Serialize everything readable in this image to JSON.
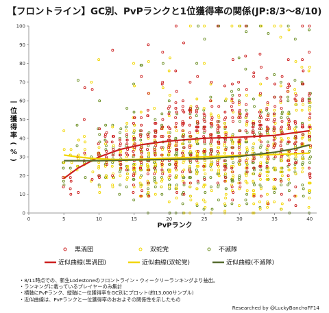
{
  "title": "【フロントライン】GC別、PvPランクと1位獲得率の関係(JP:8/3〜8/10)",
  "notes": [
    "・8/11時点での、新生Lodestoneのフロントライン・ウィークリーランキングより抽出。",
    "・ランキングに載っているプレイヤーのみ集計",
    "・横軸にPvPランク、縦軸に一位獲得率をGC別にプロット(約13,000サンプル)",
    "・近似曲線は、PvPランクと一位獲得率のおおよその関係性を示したもの"
  ],
  "credit": "Researched by @LuckyBanchoFF14",
  "colors": {
    "black_eddy": "#cc1f1f",
    "serpent": "#f2d600",
    "flame": "#6b8e23",
    "background": "#ffffff"
  },
  "chart_data": {
    "type": "scatter",
    "xlabel": "PvPランク",
    "ylabel": "一位獲得率(%)",
    "xlim": [
      0,
      41
    ],
    "ylim": [
      0,
      100
    ],
    "xticks": [
      0,
      5,
      10,
      15,
      20,
      25,
      30,
      35,
      40
    ],
    "yticks": [
      0,
      10,
      20,
      30,
      40,
      50,
      60,
      70,
      80,
      90,
      100
    ],
    "grid": false,
    "legend_position": "bottom",
    "series": [
      {
        "name": "黒渦団",
        "type": "scatter",
        "color": "#cc1f1f",
        "x_range": [
          5,
          40
        ],
        "density": "approx. 13,000 samples total across three GCs, dense from rank 15 to 40"
      },
      {
        "name": "双蛇党",
        "type": "scatter",
        "color": "#f2d600",
        "x_range": [
          5,
          40
        ],
        "density": "approx. 13,000 samples total across three GCs, dense from rank 15 to 40"
      },
      {
        "name": "不滅隊",
        "type": "scatter",
        "color": "#6b8e23",
        "x_range": [
          5,
          40
        ],
        "density": "approx. 13,000 samples total across three GCs, dense from rank 15 to 40"
      },
      {
        "name": "近似曲線(黒渦団)",
        "type": "line",
        "color": "#cc1f1f",
        "x": [
          5,
          7,
          10,
          13,
          16,
          20,
          25,
          30,
          35,
          40
        ],
        "y": [
          18.5,
          24,
          30,
          34,
          36.5,
          38.5,
          40,
          40.5,
          41.5,
          44
        ]
      },
      {
        "name": "近似曲線(双蛇党)",
        "type": "line",
        "color": "#f2d600",
        "x": [
          5,
          7,
          9,
          12,
          15,
          20,
          25,
          30,
          35,
          40
        ],
        "y": [
          31,
          30,
          29.2,
          28.6,
          28.6,
          29.3,
          30,
          30.8,
          31.3,
          32
        ]
      },
      {
        "name": "近似曲線(不滅隊)",
        "type": "line",
        "color": "#556b2f",
        "x": [
          5,
          10,
          15,
          20,
          25,
          30,
          35,
          38,
          40
        ],
        "y": [
          28,
          28,
          28.3,
          28.6,
          29,
          30.3,
          32.5,
          34.5,
          36.5
        ]
      }
    ]
  }
}
